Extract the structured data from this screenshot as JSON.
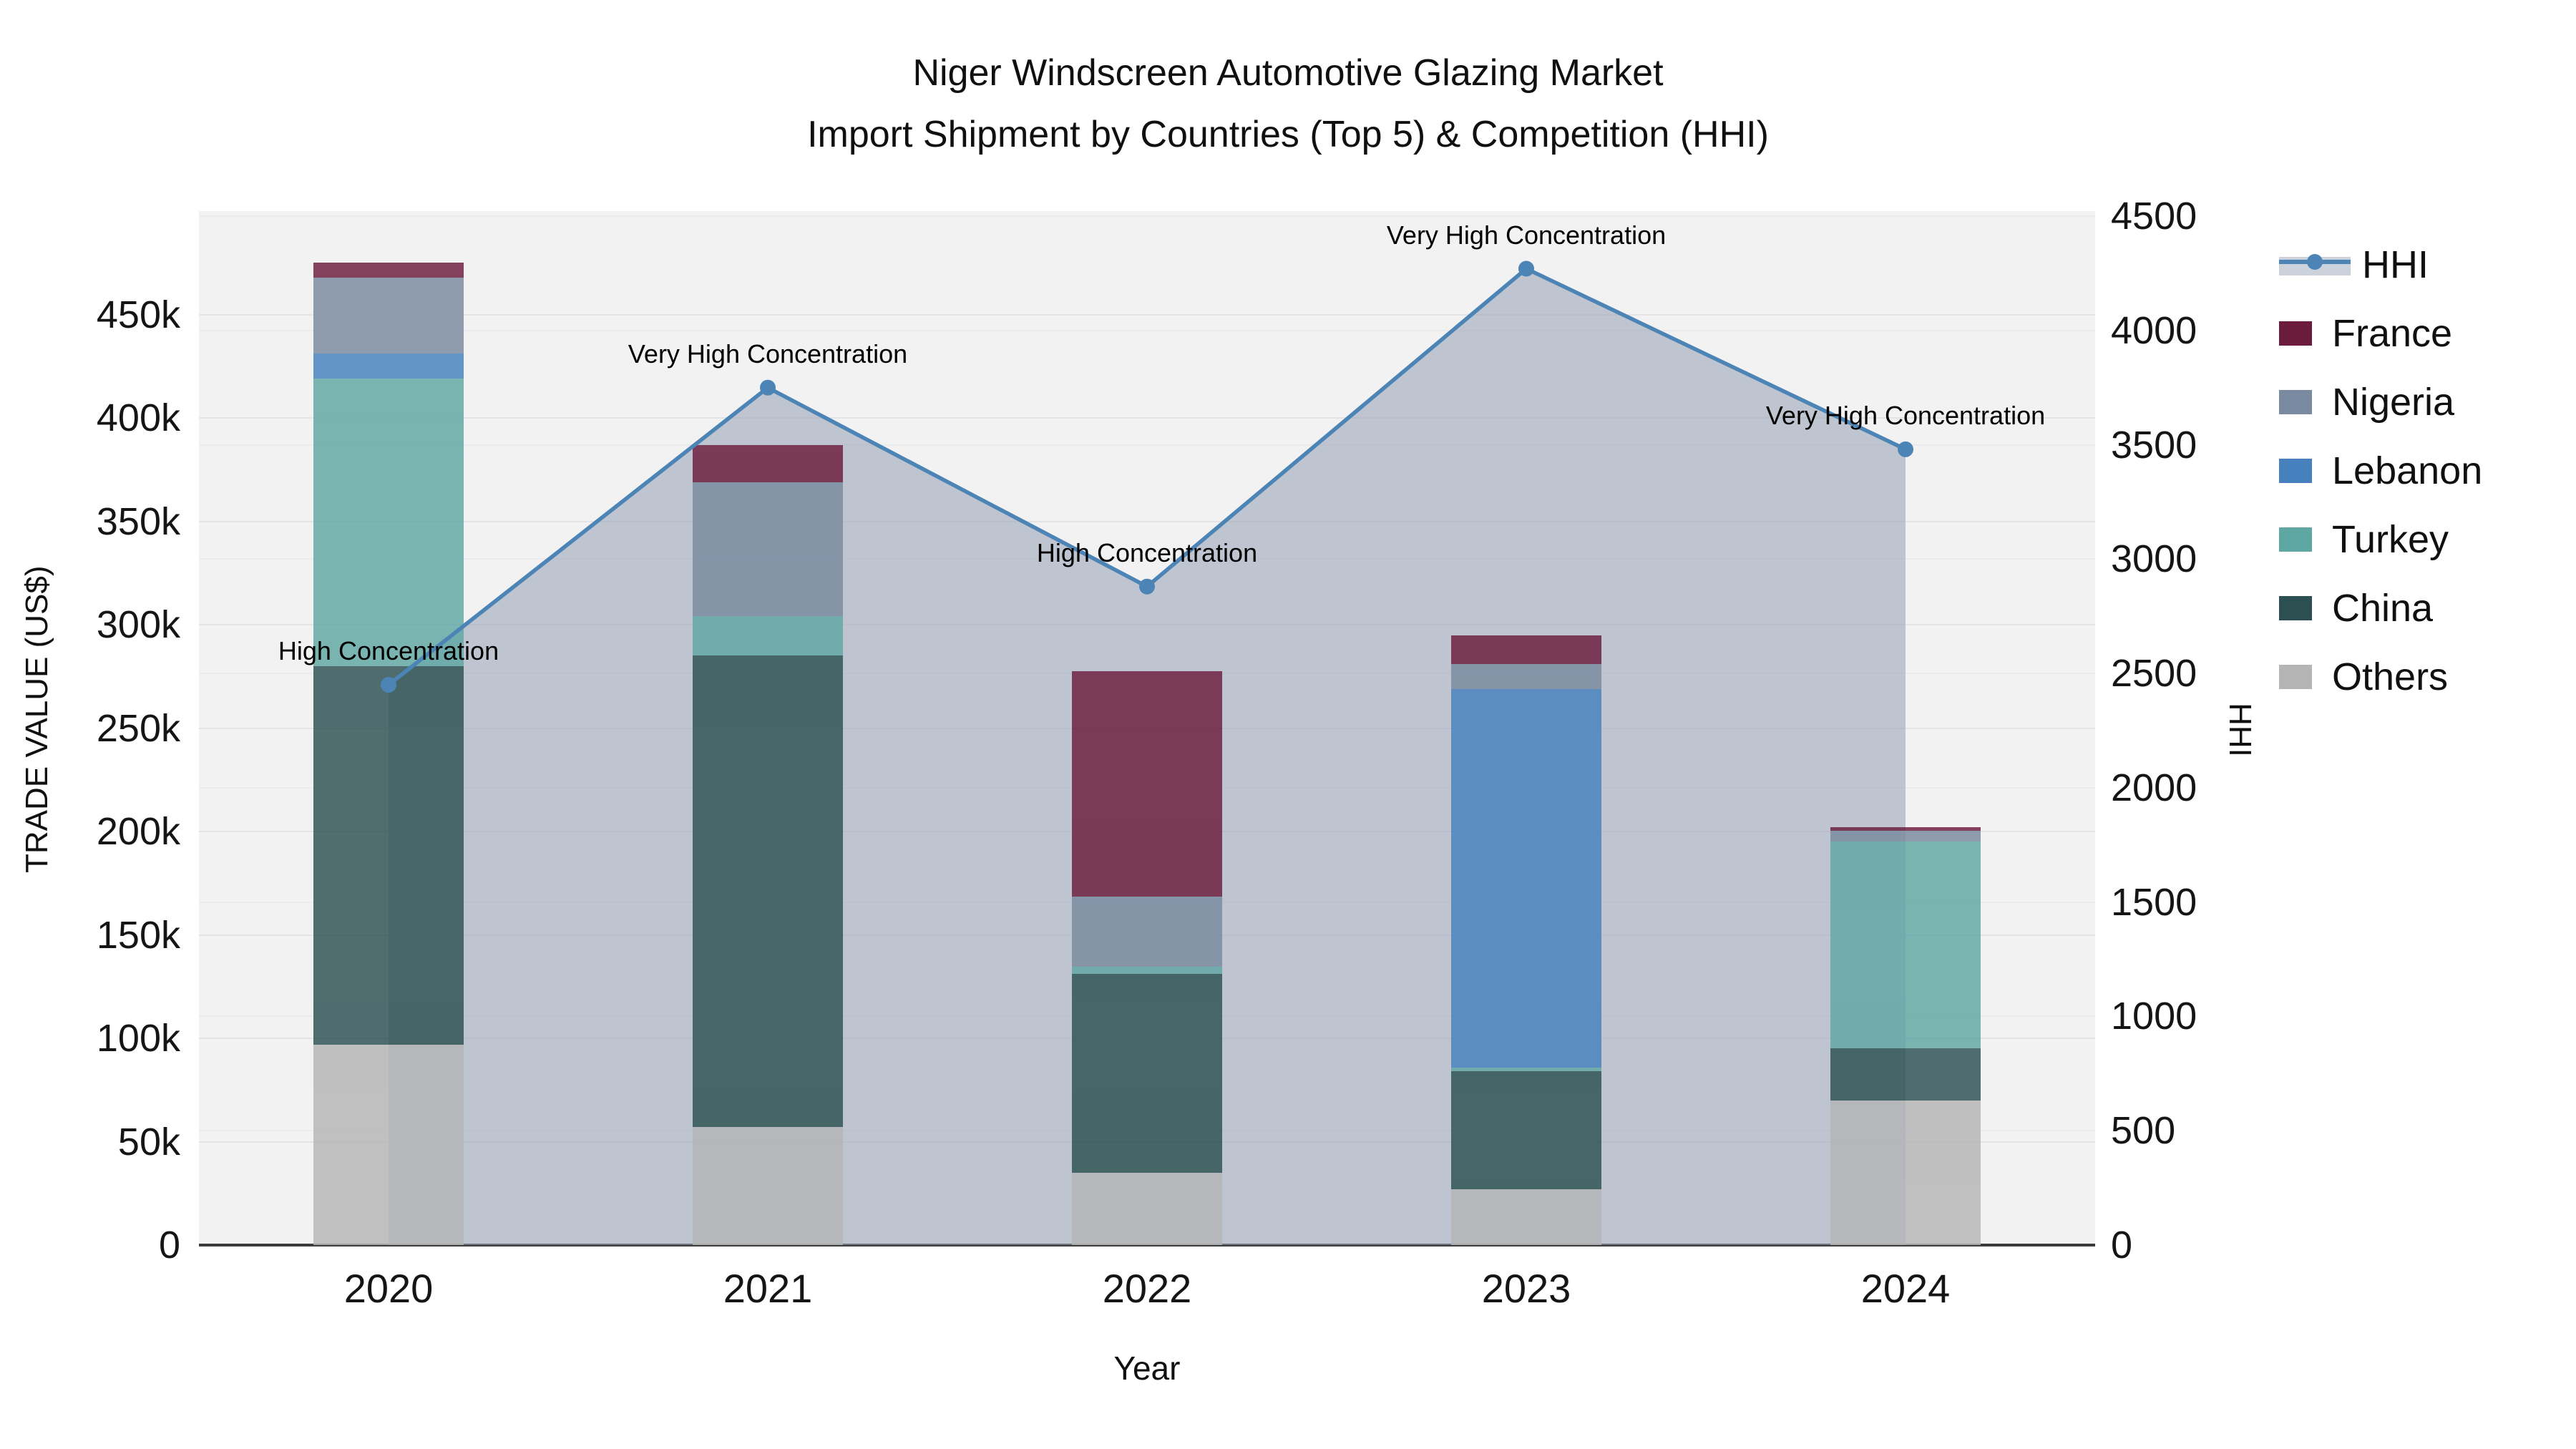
{
  "title": {
    "line1": "Niger Windscreen Automotive Glazing Market",
    "line2": "Import Shipment by Countries (Top 5) & Competition (HHI)"
  },
  "axes": {
    "left": {
      "title": "TRADE VALUE (US$)",
      "ticks": [
        "0",
        "50k",
        "100k",
        "150k",
        "200k",
        "250k",
        "300k",
        "350k",
        "400k",
        "450k"
      ],
      "max": 500000
    },
    "right": {
      "title": "HHI",
      "ticks": [
        "0",
        "500",
        "1000",
        "1500",
        "2000",
        "2500",
        "3000",
        "3500",
        "4000",
        "4500"
      ],
      "max": 4500
    },
    "x": {
      "title": "Year",
      "categories": [
        "2020",
        "2021",
        "2022",
        "2023",
        "2024"
      ]
    }
  },
  "colors": {
    "hhi_line": "#4C84B6",
    "hhi_fill": "rgba(150,160,178,0.55)",
    "plot_bg": "#f2f2f3",
    "France": "#6B1B3C",
    "Nigeria": "#7A8AA0",
    "Lebanon": "#4681BE",
    "Turkey": "#5FA7A3",
    "China": "#2C5051",
    "Others": "#B5B5B6"
  },
  "legend": [
    {
      "label": "HHI",
      "type": "line"
    },
    {
      "label": "France",
      "type": "swatch"
    },
    {
      "label": "Nigeria",
      "type": "swatch"
    },
    {
      "label": "Lebanon",
      "type": "swatch"
    },
    {
      "label": "Turkey",
      "type": "swatch"
    },
    {
      "label": "China",
      "type": "swatch"
    },
    {
      "label": "Others",
      "type": "swatch"
    }
  ],
  "chart_data": [
    {
      "type": "bar",
      "stacked": true,
      "categories": [
        "2020",
        "2021",
        "2022",
        "2023",
        "2024"
      ],
      "series": [
        {
          "name": "Others",
          "values": [
            97000,
            57000,
            35000,
            27000,
            70000
          ]
        },
        {
          "name": "China",
          "values": [
            183000,
            228000,
            96000,
            57000,
            25000
          ]
        },
        {
          "name": "Turkey",
          "values": [
            139000,
            19000,
            3500,
            2000,
            100000
          ]
        },
        {
          "name": "Lebanon",
          "values": [
            12000,
            0,
            0,
            183000,
            0
          ]
        },
        {
          "name": "Nigeria",
          "values": [
            37000,
            65000,
            34000,
            12000,
            5500
          ]
        },
        {
          "name": "France",
          "values": [
            7000,
            18000,
            109000,
            14000,
            1500
          ]
        }
      ],
      "ylabel": "TRADE VALUE (US$)",
      "ylim": [
        0,
        500000
      ],
      "grid": true
    },
    {
      "type": "line",
      "name": "HHI",
      "x": [
        "2020",
        "2021",
        "2022",
        "2023",
        "2024"
      ],
      "values": [
        2450,
        3750,
        2880,
        4270,
        3480
      ],
      "fill": "tozeroy",
      "ylabel": "HHI",
      "ylim": [
        0,
        4500
      ],
      "annotations": [
        "High Concentration",
        "Very High Concentration",
        "High Concentration",
        "Very High Concentration",
        "Very High Concentration"
      ]
    }
  ]
}
